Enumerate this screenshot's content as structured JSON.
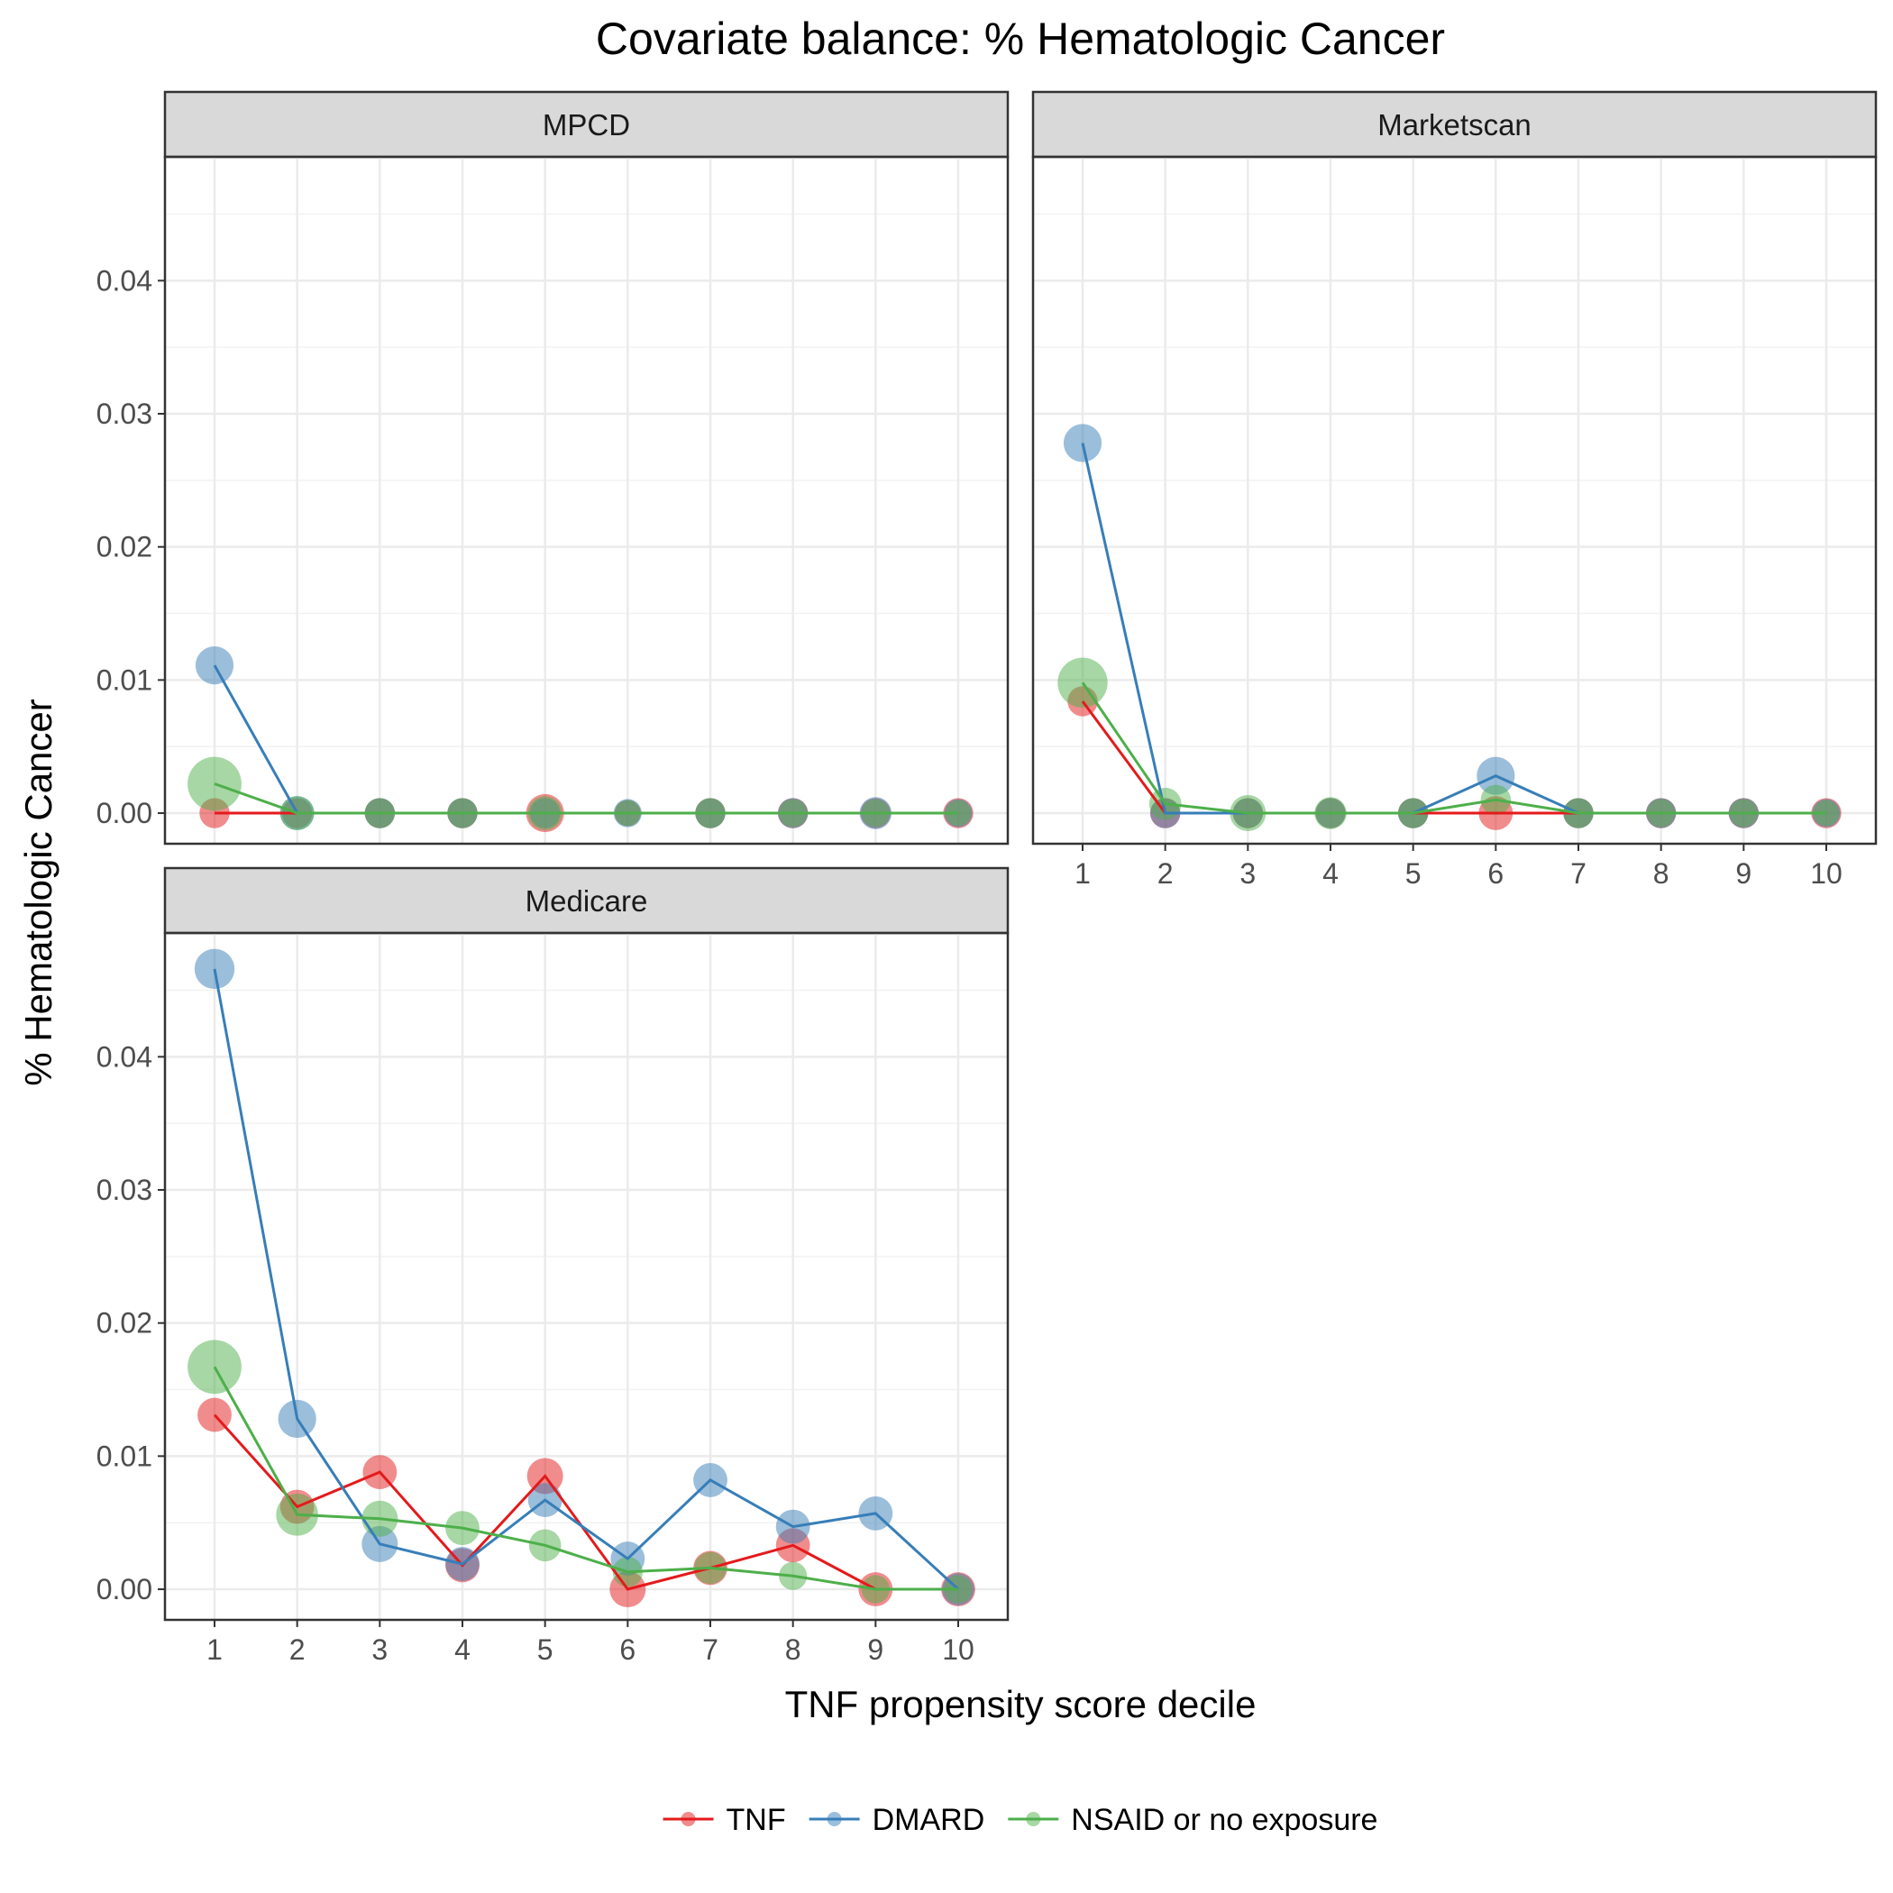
{
  "chart_data": {
    "type": "line",
    "title": "Covariate balance: % Hematologic Cancer",
    "xlabel": "TNF propensity score decile",
    "ylabel": "% Hematologic Cancer",
    "x": [
      1,
      2,
      3,
      4,
      5,
      6,
      7,
      8,
      9,
      10
    ],
    "ylim": [
      -0.0023,
      0.0493
    ],
    "yticks": [
      "0.00",
      "0.01",
      "0.02",
      "0.03",
      "0.04"
    ],
    "grid": true,
    "legend_position": "bottom",
    "colors": {
      "TNF": "#e41a1c",
      "DMARD": "#377eb8",
      "NSAID or no exposure": "#4daf4a"
    },
    "panels": [
      {
        "name": "MPCD",
        "series": [
          {
            "name": "TNF",
            "values": [
              0,
              0,
              0,
              0,
              0,
              0,
              0,
              0,
              0,
              0
            ],
            "sizes": [
              0.35,
              0.35,
              0.35,
              0.35,
              0.55,
              0.25,
              0.35,
              0.35,
              0.35,
              0.35
            ]
          },
          {
            "name": "DMARD",
            "values": [
              0.0111,
              0,
              0,
              0,
              0,
              0,
              0,
              0,
              0,
              0
            ],
            "sizes": [
              0.55,
              0.45,
              0.35,
              0.35,
              0.35,
              0.3,
              0.35,
              0.35,
              0.4,
              0.3
            ]
          },
          {
            "name": "NSAID or no exposure",
            "values": [
              0.0022,
              0,
              0,
              0,
              0,
              0,
              0,
              0,
              0,
              0
            ],
            "sizes": [
              0.95,
              0.45,
              0.35,
              0.35,
              0.45,
              0.25,
              0.35,
              0.3,
              0.3,
              0.25
            ]
          }
        ]
      },
      {
        "name": "Marketscan",
        "series": [
          {
            "name": "TNF",
            "values": [
              0.0084,
              0,
              0,
              0,
              0,
              0,
              0,
              0,
              0,
              0
            ],
            "sizes": [
              0.35,
              0.35,
              0.35,
              0.35,
              0.35,
              0.45,
              0.35,
              0.35,
              0.35,
              0.35
            ]
          },
          {
            "name": "DMARD",
            "values": [
              0.0278,
              0,
              0,
              0,
              0,
              0.0028,
              0,
              0,
              0,
              0
            ],
            "sizes": [
              0.55,
              0.35,
              0.35,
              0.35,
              0.35,
              0.55,
              0.35,
              0.35,
              0.35,
              0.3
            ]
          },
          {
            "name": "NSAID or no exposure",
            "values": [
              0.0098,
              0.0007,
              0,
              0,
              0,
              0.001,
              0,
              0,
              0,
              0
            ],
            "sizes": [
              0.85,
              0.4,
              0.5,
              0.4,
              0.35,
              0.35,
              0.35,
              0.3,
              0.3,
              0.25
            ]
          }
        ]
      },
      {
        "name": "Medicare",
        "series": [
          {
            "name": "TNF",
            "values": [
              0.0131,
              0.0062,
              0.0088,
              0.0018,
              0.0085,
              0,
              0.0016,
              0.0033,
              0,
              0
            ],
            "sizes": [
              0.45,
              0.45,
              0.45,
              0.45,
              0.5,
              0.5,
              0.45,
              0.45,
              0.45,
              0.45
            ]
          },
          {
            "name": "DMARD",
            "values": [
              0.0466,
              0.0128,
              0.0034,
              0.0019,
              0.0067,
              0.0023,
              0.0082,
              0.0047,
              0.0057,
              0
            ],
            "sizes": [
              0.6,
              0.55,
              0.5,
              0.45,
              0.45,
              0.45,
              0.45,
              0.45,
              0.45,
              0.4
            ]
          },
          {
            "name": "NSAID or no exposure",
            "values": [
              0.0167,
              0.0056,
              0.0053,
              0.0046,
              0.0033,
              0.0013,
              0.0016,
              0.001,
              0,
              0
            ],
            "sizes": [
              0.95,
              0.65,
              0.5,
              0.45,
              0.4,
              0.35,
              0.4,
              0.3,
              0.3,
              0.3
            ]
          }
        ]
      }
    ]
  }
}
